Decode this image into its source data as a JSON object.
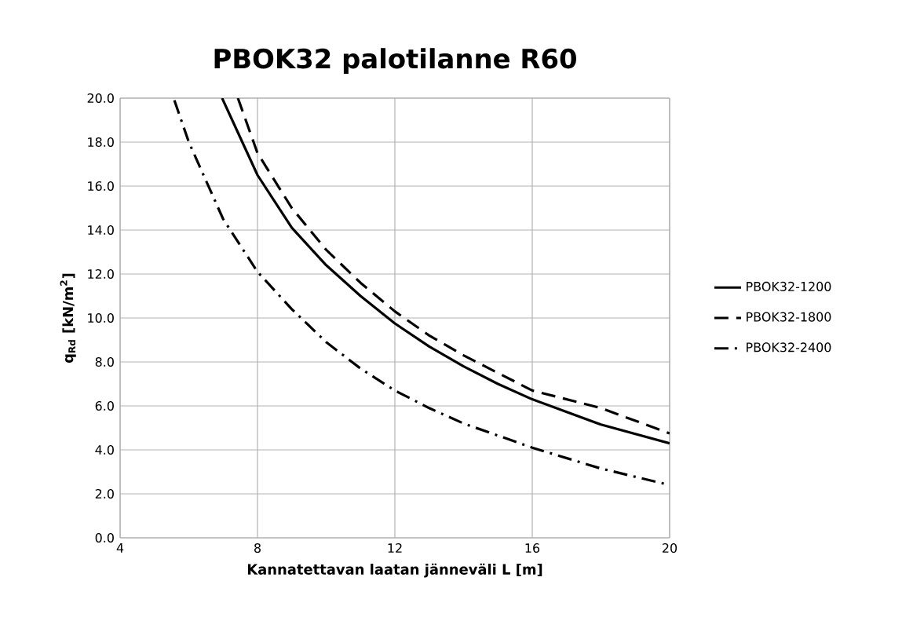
{
  "chart_data": {
    "type": "line",
    "title": "PBOK32 palotilanne R60",
    "xlabel": "Kannatettavan laatan jänneväli L [m]",
    "ylabel": "q$_{Rd}$ [kN/m$^{2}$]",
    "xlim": [
      4,
      20
    ],
    "xticks": [
      4,
      8,
      12,
      16,
      20
    ],
    "ylim": [
      0,
      20
    ],
    "yticks": [
      {
        "value": 0,
        "label": "0.0"
      },
      {
        "value": 2,
        "label": "2.0"
      },
      {
        "value": 4,
        "label": "4.0"
      },
      {
        "value": 6,
        "label": "6.0"
      },
      {
        "value": 8,
        "label": "8.0"
      },
      {
        "value": 10,
        "label": "10.0"
      },
      {
        "value": 12,
        "label": "12.0"
      },
      {
        "value": 14,
        "label": "14.0"
      },
      {
        "value": 16,
        "label": "16.0"
      },
      {
        "value": 18,
        "label": "18.0"
      },
      {
        "value": 20,
        "label": "20.0"
      }
    ],
    "grid": true,
    "legend": "right",
    "series": [
      {
        "name": "PBOK32-1200",
        "color": "#000000",
        "line_style": "solid",
        "x": [
          6.97,
          8,
          9,
          10,
          11,
          12,
          13,
          14,
          15,
          16,
          18,
          20
        ],
        "values": [
          20,
          16.5,
          14.1,
          12.4,
          11.0,
          9.75,
          8.7,
          7.8,
          7.0,
          6.3,
          5.15,
          4.3
        ]
      },
      {
        "name": "PBOK32-1800",
        "color": "#000000",
        "line_style": "dashed",
        "x": [
          7.43,
          8,
          9,
          10,
          11,
          12,
          13,
          14,
          16,
          18,
          20
        ],
        "values": [
          20,
          17.5,
          15.0,
          13.1,
          11.6,
          10.3,
          9.2,
          8.3,
          6.7,
          5.9,
          4.75
        ]
      },
      {
        "name": "PBOK32-2400",
        "color": "#000000",
        "line_style": "dashdot",
        "x": [
          5.58,
          6,
          7,
          8,
          9,
          10,
          11,
          12,
          13,
          14,
          16,
          18,
          20
        ],
        "values": [
          19.9,
          18.0,
          14.5,
          12.1,
          10.4,
          8.9,
          7.7,
          6.7,
          5.9,
          5.2,
          4.1,
          3.15,
          2.4
        ]
      }
    ]
  }
}
